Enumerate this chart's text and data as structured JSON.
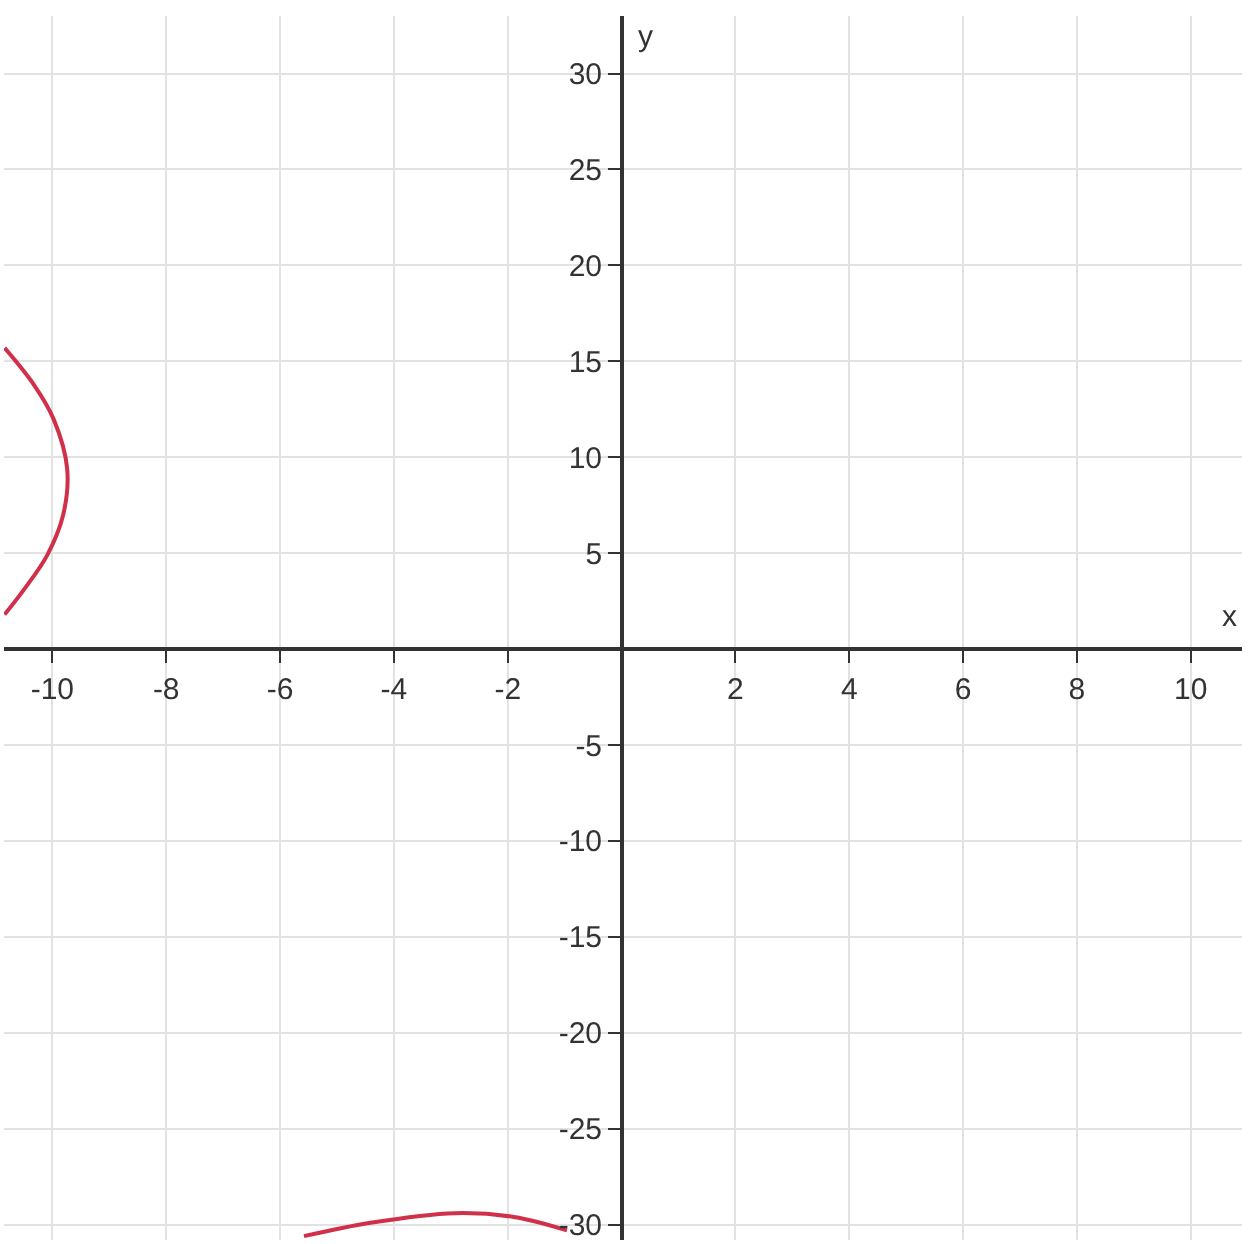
{
  "chart_data": {
    "type": "line",
    "xlabel": "x",
    "ylabel": "y",
    "xlim": [
      -10.85,
      10.9
    ],
    "ylim": [
      -30.8,
      33
    ],
    "xticks": [
      -10,
      -8,
      -6,
      -4,
      -2,
      2,
      4,
      6,
      8,
      10
    ],
    "yticks": [
      -30,
      -25,
      -20,
      -15,
      -10,
      -5,
      5,
      10,
      15,
      20,
      25,
      30
    ],
    "grid": true,
    "series": [
      {
        "color": "#d0304a",
        "x": [
          -10.84,
          -10.33,
          -9.98,
          -9.74,
          -9.81,
          -10.09,
          -10.5,
          -10.84,
          null,
          -5.58,
          -4.41,
          -2.93,
          -1.89,
          -0.96
        ],
        "values": [
          15.7,
          13.8,
          12.0,
          9.4,
          7.0,
          4.9,
          3.1,
          1.8,
          null,
          -30.6,
          -29.9,
          -29.4,
          -29.6,
          -30.3
        ]
      }
    ]
  }
}
